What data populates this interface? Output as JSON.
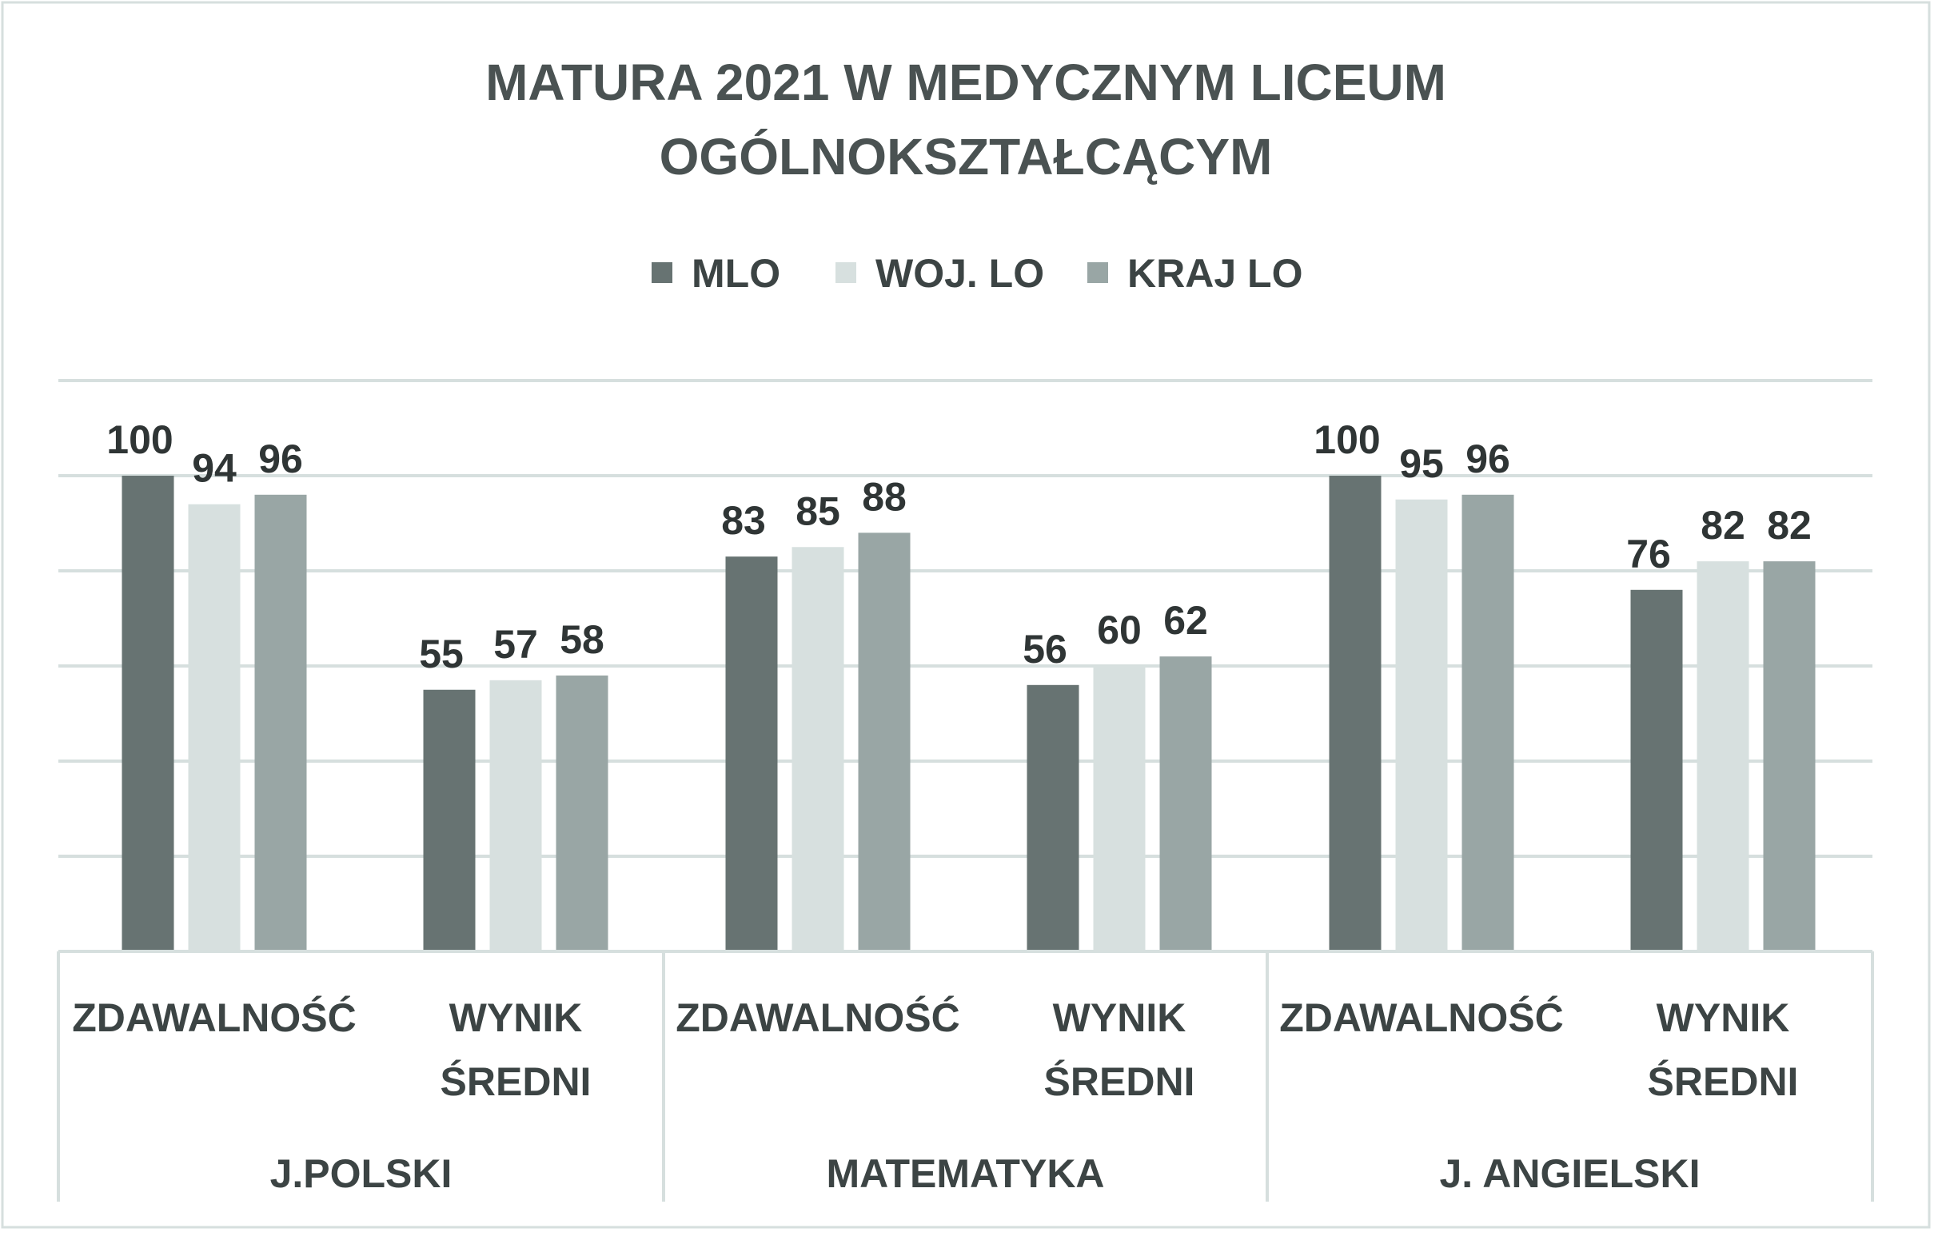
{
  "chart_data": {
    "type": "bar",
    "title_lines": [
      "MATURA 2021  W MEDYCZNYM LICEUM",
      "OGÓLNOKSZTAŁCĄCYM"
    ],
    "xlabel": "",
    "ylabel": "",
    "ylim": [
      0,
      120
    ],
    "grid": true,
    "legend_position": "top-center",
    "groups": [
      "J.POLSKI",
      "MATEMATYKA",
      "J. ANGIELSKI"
    ],
    "categories": [
      [
        "ZDAWALNOŚĆ"
      ],
      [
        "WYNIK",
        "ŚREDNI"
      ],
      [
        "ZDAWALNOŚĆ"
      ],
      [
        "WYNIK",
        "ŚREDNI"
      ],
      [
        "ZDAWALNOŚĆ"
      ],
      [
        "WYNIK",
        "ŚREDNI"
      ]
    ],
    "series": [
      {
        "name": "MLO",
        "color": "#677372",
        "values": [
          100,
          55,
          83,
          56,
          100,
          76
        ]
      },
      {
        "name": "WOJ. LO",
        "color": "#d7e0df",
        "values": [
          94,
          57,
          85,
          60,
          95,
          82
        ]
      },
      {
        "name": "KRAJ LO",
        "color": "#99a6a5",
        "values": [
          96,
          58,
          88,
          62,
          96,
          82
        ]
      }
    ],
    "colors": {
      "grid": "#d6dfde",
      "axis": "#d6dfde",
      "frame": "#d6dfde"
    }
  }
}
